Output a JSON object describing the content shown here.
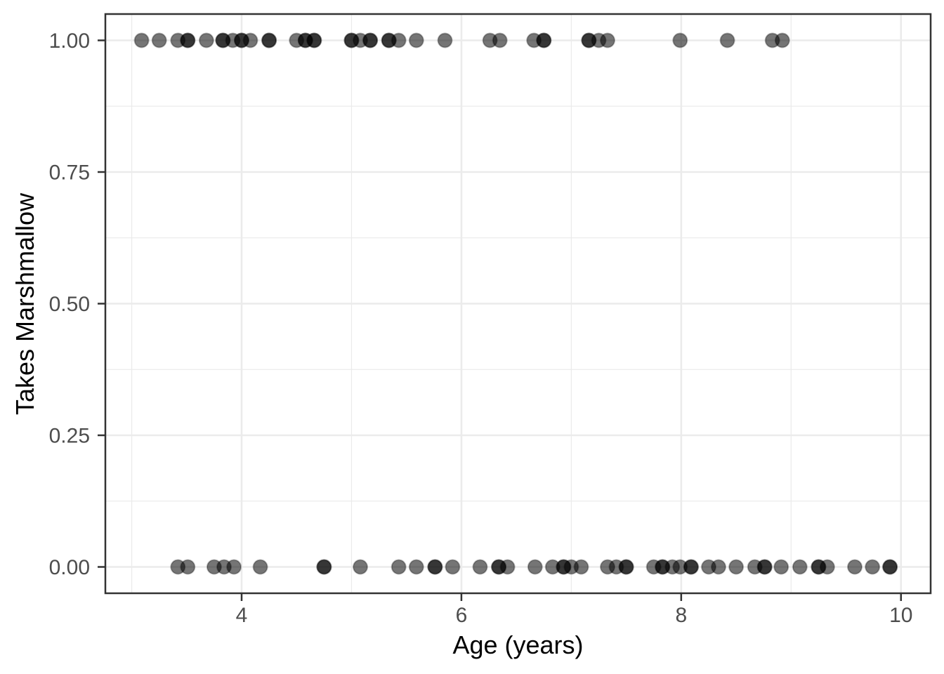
{
  "figure": {
    "background_color": "#ffffff"
  },
  "chart_data": {
    "type": "scatter",
    "title": "",
    "xlabel": "Age (years)",
    "ylabel": "Takes Marshmallow",
    "legend": "none",
    "grid": {
      "show": true,
      "major_color": "#ebebeb",
      "minor_color": "#ebebeb"
    },
    "panel": {
      "background_color": "#ffffff",
      "border_color": "#333333",
      "tick_color": "#333333",
      "tick_label_color": "#4d4d4d",
      "axis_title_color": "#000000"
    },
    "point_style": {
      "color": "#000000",
      "alpha": 0.5,
      "radius_px": 10
    },
    "x_axis": {
      "lim": [
        2.76,
        10.27
      ],
      "ticks": [
        {
          "value": 4,
          "label": "4"
        },
        {
          "value": 6,
          "label": "6"
        },
        {
          "value": 8,
          "label": "8"
        },
        {
          "value": 10,
          "label": "10"
        }
      ],
      "minor": [
        3,
        5,
        7,
        9
      ]
    },
    "y_axis": {
      "lim": [
        -0.05,
        1.05
      ],
      "ticks": [
        {
          "value": 1.0,
          "label": "1.00"
        },
        {
          "value": 0.75,
          "label": "0.75"
        },
        {
          "value": 0.5,
          "label": "0.50"
        },
        {
          "value": 0.25,
          "label": "0.25"
        },
        {
          "value": 0.0,
          "label": "0.00"
        }
      ],
      "minor": [
        0.125,
        0.375,
        0.625,
        0.875
      ]
    },
    "points": [
      {
        "age": 3.09,
        "takes": 1,
        "n": 1
      },
      {
        "age": 3.25,
        "takes": 1,
        "n": 1
      },
      {
        "age": 3.42,
        "takes": 1,
        "n": 1
      },
      {
        "age": 3.51,
        "takes": 1,
        "n": 2
      },
      {
        "age": 3.68,
        "takes": 1,
        "n": 1
      },
      {
        "age": 3.83,
        "takes": 1,
        "n": 2
      },
      {
        "age": 3.92,
        "takes": 1,
        "n": 1
      },
      {
        "age": 4.0,
        "takes": 1,
        "n": 2
      },
      {
        "age": 4.08,
        "takes": 1,
        "n": 1
      },
      {
        "age": 4.25,
        "takes": 1,
        "n": 2
      },
      {
        "age": 4.5,
        "takes": 1,
        "n": 1
      },
      {
        "age": 4.58,
        "takes": 1,
        "n": 2
      },
      {
        "age": 4.66,
        "takes": 1,
        "n": 2
      },
      {
        "age": 5.0,
        "takes": 1,
        "n": 2
      },
      {
        "age": 5.08,
        "takes": 1,
        "n": 1
      },
      {
        "age": 5.17,
        "takes": 1,
        "n": 2
      },
      {
        "age": 5.34,
        "takes": 1,
        "n": 2
      },
      {
        "age": 5.43,
        "takes": 1,
        "n": 1
      },
      {
        "age": 5.59,
        "takes": 1,
        "n": 1
      },
      {
        "age": 5.85,
        "takes": 1,
        "n": 1
      },
      {
        "age": 6.26,
        "takes": 1,
        "n": 1
      },
      {
        "age": 6.35,
        "takes": 1,
        "n": 1
      },
      {
        "age": 6.66,
        "takes": 1,
        "n": 1
      },
      {
        "age": 6.75,
        "takes": 1,
        "n": 2
      },
      {
        "age": 7.16,
        "takes": 1,
        "n": 2
      },
      {
        "age": 7.25,
        "takes": 1,
        "n": 1
      },
      {
        "age": 7.33,
        "takes": 1,
        "n": 1
      },
      {
        "age": 7.99,
        "takes": 1,
        "n": 1
      },
      {
        "age": 8.42,
        "takes": 1,
        "n": 1
      },
      {
        "age": 8.83,
        "takes": 1,
        "n": 1
      },
      {
        "age": 8.92,
        "takes": 1,
        "n": 1
      },
      {
        "age": 3.42,
        "takes": 0,
        "n": 1
      },
      {
        "age": 3.51,
        "takes": 0,
        "n": 1
      },
      {
        "age": 3.75,
        "takes": 0,
        "n": 1
      },
      {
        "age": 3.84,
        "takes": 0,
        "n": 1
      },
      {
        "age": 3.93,
        "takes": 0,
        "n": 1
      },
      {
        "age": 4.17,
        "takes": 0,
        "n": 1
      },
      {
        "age": 4.75,
        "takes": 0,
        "n": 2
      },
      {
        "age": 5.08,
        "takes": 0,
        "n": 1
      },
      {
        "age": 5.43,
        "takes": 0,
        "n": 1
      },
      {
        "age": 5.59,
        "takes": 0,
        "n": 1
      },
      {
        "age": 5.76,
        "takes": 0,
        "n": 2
      },
      {
        "age": 5.92,
        "takes": 0,
        "n": 1
      },
      {
        "age": 6.17,
        "takes": 0,
        "n": 1
      },
      {
        "age": 6.34,
        "takes": 0,
        "n": 2
      },
      {
        "age": 6.42,
        "takes": 0,
        "n": 1
      },
      {
        "age": 6.67,
        "takes": 0,
        "n": 1
      },
      {
        "age": 6.83,
        "takes": 0,
        "n": 1
      },
      {
        "age": 6.93,
        "takes": 0,
        "n": 2
      },
      {
        "age": 7.0,
        "takes": 0,
        "n": 1
      },
      {
        "age": 7.09,
        "takes": 0,
        "n": 1
      },
      {
        "age": 7.33,
        "takes": 0,
        "n": 1
      },
      {
        "age": 7.41,
        "takes": 0,
        "n": 1
      },
      {
        "age": 7.5,
        "takes": 0,
        "n": 2
      },
      {
        "age": 7.75,
        "takes": 0,
        "n": 1
      },
      {
        "age": 7.83,
        "takes": 0,
        "n": 2
      },
      {
        "age": 7.92,
        "takes": 0,
        "n": 1
      },
      {
        "age": 7.99,
        "takes": 0,
        "n": 1
      },
      {
        "age": 8.09,
        "takes": 0,
        "n": 2
      },
      {
        "age": 8.25,
        "takes": 0,
        "n": 1
      },
      {
        "age": 8.34,
        "takes": 0,
        "n": 1
      },
      {
        "age": 8.5,
        "takes": 0,
        "n": 1
      },
      {
        "age": 8.67,
        "takes": 0,
        "n": 1
      },
      {
        "age": 8.76,
        "takes": 0,
        "n": 2
      },
      {
        "age": 8.91,
        "takes": 0,
        "n": 1
      },
      {
        "age": 9.08,
        "takes": 0,
        "n": 1
      },
      {
        "age": 9.25,
        "takes": 0,
        "n": 2
      },
      {
        "age": 9.33,
        "takes": 0,
        "n": 1
      },
      {
        "age": 9.58,
        "takes": 0,
        "n": 1
      },
      {
        "age": 9.74,
        "takes": 0,
        "n": 1
      },
      {
        "age": 9.9,
        "takes": 0,
        "n": 2
      }
    ]
  }
}
